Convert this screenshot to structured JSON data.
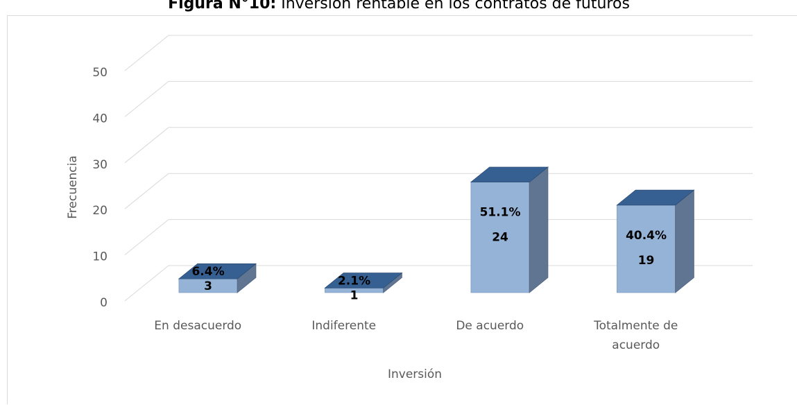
{
  "chart_data": {
    "type": "bar3d",
    "title_label": "Figura N°10:",
    "title": "Inversión rentable en los contratos de futuros",
    "x_label": "Inversión",
    "y_label": "Frecuencia",
    "categories": [
      "En desacuerdo",
      "Indiferente",
      "De acuerdo",
      "Totalmente de acuerdo"
    ],
    "values": [
      3,
      1,
      24,
      19
    ],
    "percent_labels": [
      "6.4%",
      "2.1%",
      "51.1%",
      "40.4%"
    ],
    "colors": {
      "front": "#95b3d7",
      "top": "#376092",
      "side": "#5f7591"
    },
    "ylim": [
      0,
      50
    ],
    "yticks": [
      0,
      10,
      20,
      30,
      40,
      50
    ],
    "grid": true
  }
}
